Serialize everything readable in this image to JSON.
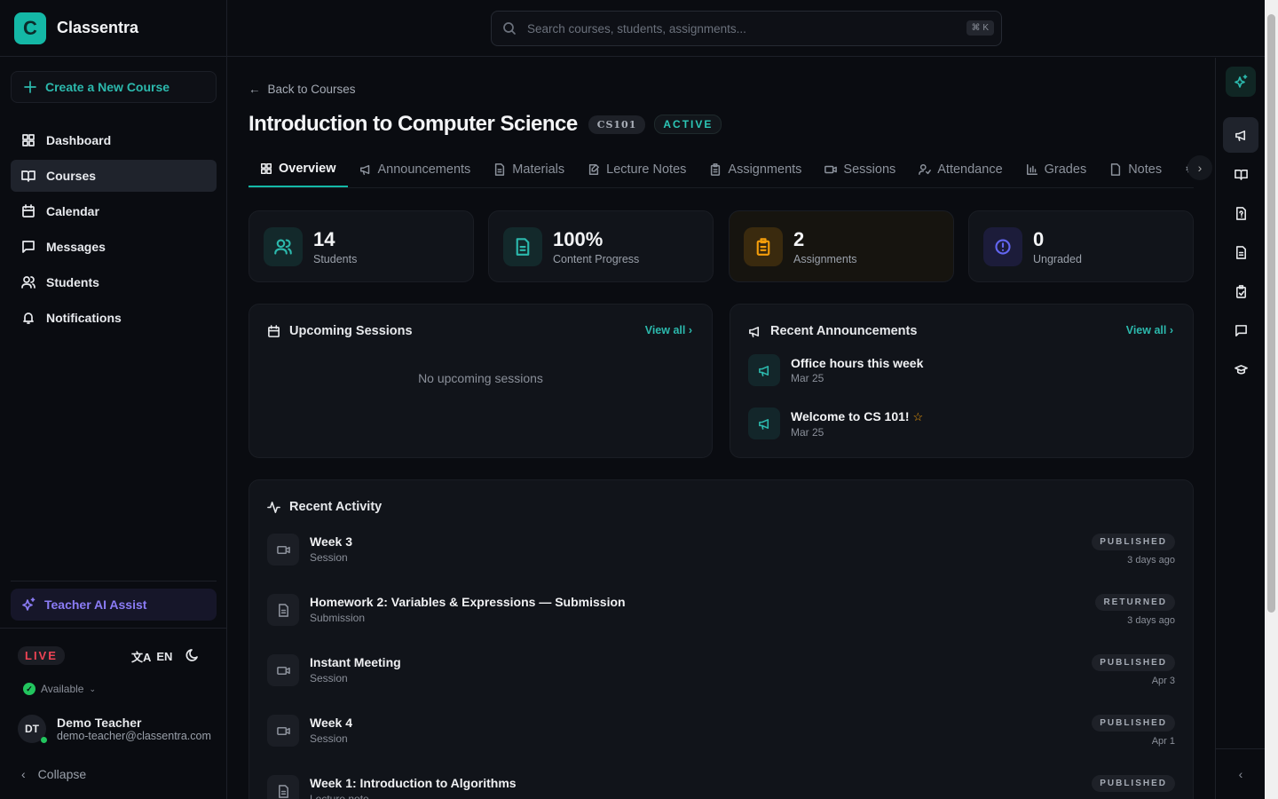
{
  "app": {
    "name": "Classentra",
    "logo_letter": "C"
  },
  "sidebar": {
    "create_label": "Create a New Course",
    "items": [
      {
        "label": "Dashboard",
        "icon": "dashboard-icon"
      },
      {
        "label": "Courses",
        "icon": "book-icon",
        "active": true
      },
      {
        "label": "Calendar",
        "icon": "calendar-icon"
      },
      {
        "label": "Messages",
        "icon": "message-icon"
      },
      {
        "label": "Students",
        "icon": "users-icon"
      },
      {
        "label": "Notifications",
        "icon": "bell-icon"
      }
    ],
    "ai_label": "Teacher AI Assist",
    "live_label": "LIVE",
    "lang": "EN",
    "availability": "Available",
    "user": {
      "initials": "DT",
      "name": "Demo Teacher",
      "email": "demo-teacher@classentra.com"
    },
    "collapse_label": "Collapse"
  },
  "search": {
    "placeholder": "Search courses, students, assignments...",
    "shortcut": "⌘ K"
  },
  "course": {
    "back_label": "Back to Courses",
    "title": "Introduction to Computer Science",
    "code": "CS101",
    "status": "ACTIVE",
    "tabs": [
      "Overview",
      "Announcements",
      "Materials",
      "Lecture Notes",
      "Assignments",
      "Sessions",
      "Attendance",
      "Grades",
      "Notes"
    ]
  },
  "stats": [
    {
      "value": "14",
      "label": "Students",
      "color": "#2cb9ad"
    },
    {
      "value": "100%",
      "label": "Content Progress",
      "color": "#2cb9ad"
    },
    {
      "value": "2",
      "label": "Assignments",
      "color": "#f59e0b"
    },
    {
      "value": "0",
      "label": "Ungraded",
      "color": "#6366f1"
    }
  ],
  "sessions": {
    "title": "Upcoming Sessions",
    "view_all": "View all",
    "empty": "No upcoming sessions"
  },
  "announcements": {
    "title": "Recent Announcements",
    "view_all": "View all",
    "items": [
      {
        "title": "Office hours this week",
        "date": "Mar 25"
      },
      {
        "title": "Welcome to CS 101!",
        "date": "Mar 25",
        "starred": true
      }
    ]
  },
  "activity": {
    "title": "Recent Activity",
    "items": [
      {
        "title": "Week 3",
        "type": "Session",
        "status": "PUBLISHED",
        "when": "3 days ago",
        "icon": "video-icon"
      },
      {
        "title": "Homework 2: Variables & Expressions — Submission",
        "type": "Submission",
        "status": "RETURNED",
        "when": "3 days ago",
        "icon": "file-icon"
      },
      {
        "title": "Instant Meeting",
        "type": "Session",
        "status": "PUBLISHED",
        "when": "Apr 3",
        "icon": "video-icon"
      },
      {
        "title": "Week 4",
        "type": "Session",
        "status": "PUBLISHED",
        "when": "Apr 1",
        "icon": "video-icon"
      },
      {
        "title": "Week 1: Introduction to Algorithms",
        "type": "Lecture note",
        "status": "PUBLISHED",
        "when": "",
        "icon": "file-icon"
      }
    ]
  },
  "colors": {
    "accent": "#14b8a6",
    "background": "#0a0c11",
    "ai": "#8b7cf6",
    "live": "#ef4455"
  }
}
